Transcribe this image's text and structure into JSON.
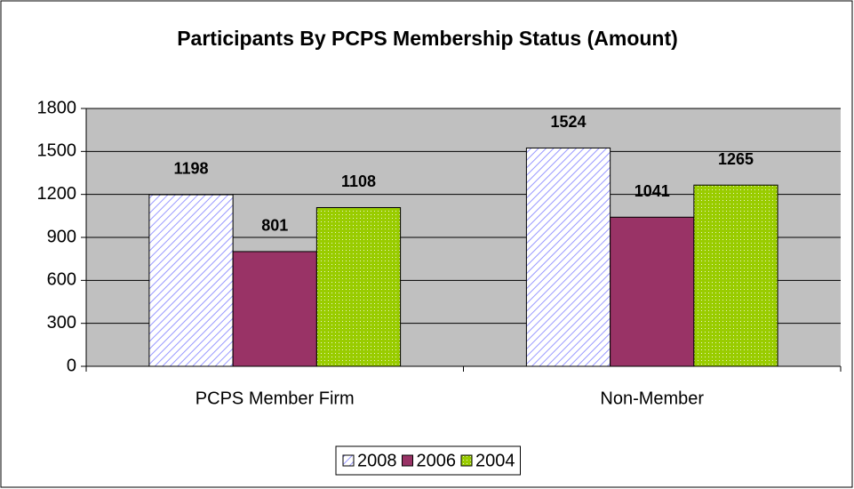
{
  "chart_data": {
    "type": "bar",
    "title": "Participants By PCPS Membership Status (Amount)",
    "categories": [
      "PCPS Member Firm",
      "Non-Member"
    ],
    "series": [
      {
        "name": "2008",
        "color": "#9999ff",
        "pattern": "hatch",
        "values": [
          1198,
          1524
        ]
      },
      {
        "name": "2006",
        "color": "#993366",
        "pattern": "solid",
        "values": [
          801,
          1041
        ]
      },
      {
        "name": "2004",
        "color": "#99cc00",
        "pattern": "dots",
        "values": [
          1108,
          1265
        ]
      }
    ],
    "ylim": [
      0,
      1800
    ],
    "yticks": [
      0,
      300,
      600,
      900,
      1200,
      1500,
      1800
    ],
    "grid": true,
    "legend": "bottom"
  }
}
